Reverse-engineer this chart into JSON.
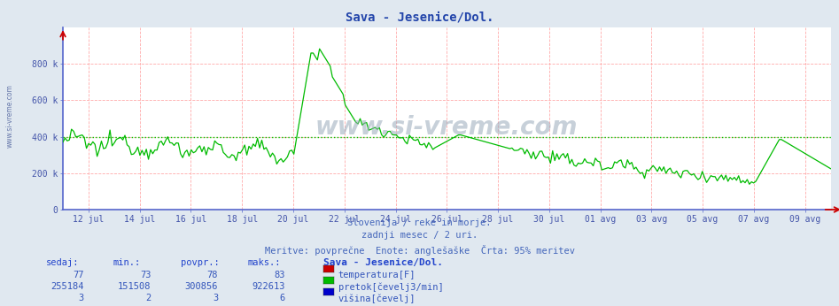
{
  "title": "Sava - Jesenice/Dol.",
  "subtitle1": "Slovenija / reke in morje.",
  "subtitle2": "zadnji mesec / 2 uri.",
  "subtitle3": "Meritve: povprečne  Enote: anglešaške  Črta: 95% meritev",
  "bg_color": "#e0e8f0",
  "plot_bg_color": "#ffffff",
  "grid_color": "#ffaaaa",
  "line_color_flow": "#00bb00",
  "line_color_temp": "#cc0000",
  "line_color_height": "#0000cc",
  "avg_line_color": "#00cc00",
  "ylabel_color": "#4455aa",
  "title_color": "#2244aa",
  "text_color": "#4466bb",
  "spine_color": "#5566cc",
  "ytick_labels": [
    "0",
    "200 k",
    "400 k",
    "600 k",
    "800 k"
  ],
  "ytick_values": [
    0,
    200000,
    400000,
    600000,
    800000
  ],
  "avg_value": 400000,
  "sedaj_temp": 77,
  "min_temp": 73,
  "povpr_temp": 78,
  "maks_temp": 83,
  "sedaj_flow": 255184,
  "min_flow": 151508,
  "povpr_flow": 300856,
  "maks_flow": 922613,
  "sedaj_height": 3,
  "min_height": 2,
  "povpr_height": 3,
  "maks_height": 6,
  "legend_station": "Sava - Jesenice/Dol.",
  "legend_temp": "temperatura[F]",
  "legend_flow": "pretok[čevelj3/min]",
  "legend_height": "višina[čevelj]",
  "watermark": "www.si-vreme.com",
  "x_ticks": [
    11,
    13,
    15,
    17,
    19,
    21,
    23,
    25,
    27,
    29,
    31,
    33,
    35,
    37,
    39
  ],
  "x_labels": [
    "12 jul",
    "14 jul",
    "16 jul",
    "18 jul",
    "20 jul",
    "22 jul",
    "24 jul",
    "26 jul",
    "28 jul",
    "30 jul",
    "01 avg",
    "03 avg",
    "05 avg",
    "07 avg",
    "09 avg"
  ]
}
